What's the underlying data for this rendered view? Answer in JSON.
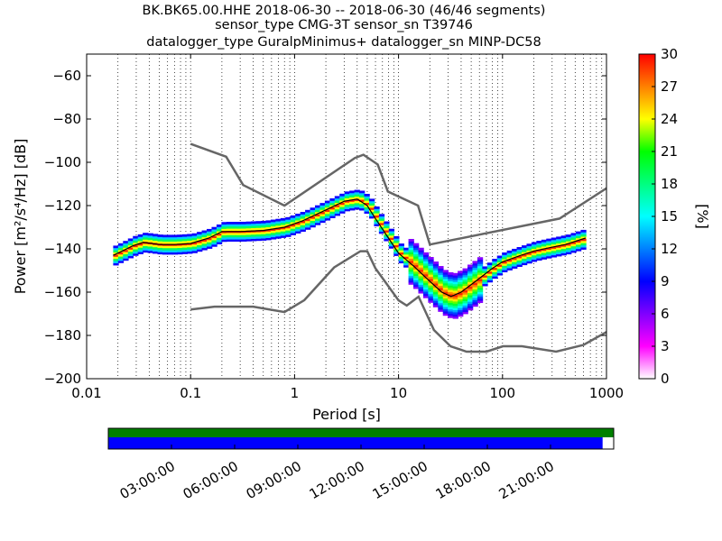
{
  "chart_data": {
    "type": "heatmap",
    "title_lines": [
      "BK.BK65.00.HHE   2018-06-30 -- 2018-06-30  (46/46 segments)",
      "sensor_type CMG-3T sensor_sn T39746",
      "datalogger_type GuralpMinimus+ datalogger_sn MINP-DC58"
    ],
    "xlabel": "Period [s]",
    "ylabel": "Power [m²/s⁴/Hz] [dB]",
    "x_scale": "log",
    "xlim": [
      0.01,
      1000
    ],
    "ylim": [
      -200,
      -50
    ],
    "x_tick_labels": [
      {
        "value": 0.01,
        "label": "0.01"
      },
      {
        "value": 0.1,
        "label": "0.1"
      },
      {
        "value": 1,
        "label": "1"
      },
      {
        "value": 10,
        "label": "10"
      },
      {
        "value": 100,
        "label": "100"
      },
      {
        "value": 1000,
        "label": "1000"
      }
    ],
    "y_tick_labels": [
      {
        "value": -60,
        "label": "−60"
      },
      {
        "value": -80,
        "label": "−80"
      },
      {
        "value": -100,
        "label": "−100"
      },
      {
        "value": -120,
        "label": "−120"
      },
      {
        "value": -140,
        "label": "−140"
      },
      {
        "value": -160,
        "label": "−160"
      },
      {
        "value": -180,
        "label": "−180"
      },
      {
        "value": -200,
        "label": "−200"
      }
    ],
    "grid": "dotted vertical",
    "colorbar": {
      "label": "[%]",
      "range": [
        0,
        30
      ],
      "ticks": [
        {
          "value": 0,
          "label": "0"
        },
        {
          "value": 3,
          "label": "3"
        },
        {
          "value": 6,
          "label": "6"
        },
        {
          "value": 9,
          "label": "9"
        },
        {
          "value": 12,
          "label": "12"
        },
        {
          "value": 15,
          "label": "15"
        },
        {
          "value": 18,
          "label": "18"
        },
        {
          "value": 21,
          "label": "21"
        },
        {
          "value": 24,
          "label": "24"
        },
        {
          "value": 27,
          "label": "27"
        },
        {
          "value": 30,
          "label": "30"
        }
      ],
      "colors": [
        "#ffffff",
        "#ff00ff",
        "#8000ff",
        "#0000ff",
        "#0080ff",
        "#00ffff",
        "#00ff80",
        "#00ff00",
        "#ffff00",
        "#ff8000",
        "#ff0000"
      ]
    },
    "noise_models": [
      {
        "name": "NHNM",
        "color": "#666666",
        "points": [
          [
            0.1,
            -91.5
          ],
          [
            0.22,
            -97.4
          ],
          [
            0.32,
            -110.5
          ],
          [
            0.8,
            -120
          ],
          [
            3.8,
            -98
          ],
          [
            4.6,
            -96.5
          ],
          [
            6.3,
            -101
          ],
          [
            7.9,
            -113.5
          ],
          [
            15.4,
            -120
          ],
          [
            20,
            -138
          ],
          [
            354,
            -126
          ],
          [
            1000,
            -112
          ]
        ]
      },
      {
        "name": "NLNM",
        "color": "#666666",
        "points": [
          [
            0.1,
            -168
          ],
          [
            0.17,
            -166.7
          ],
          [
            0.4,
            -166.7
          ],
          [
            0.8,
            -169.2
          ],
          [
            1.24,
            -163.7
          ],
          [
            2.4,
            -148.6
          ],
          [
            4.3,
            -141.1
          ],
          [
            5,
            -141.1
          ],
          [
            6,
            -149
          ],
          [
            10,
            -163.8
          ],
          [
            12,
            -166.2
          ],
          [
            15.6,
            -162.1
          ],
          [
            21.9,
            -177.5
          ],
          [
            31.6,
            -185
          ],
          [
            45,
            -187.5
          ],
          [
            70,
            -187.5
          ],
          [
            101,
            -185
          ],
          [
            154,
            -185
          ],
          [
            328,
            -187.5
          ],
          [
            600,
            -184.4
          ],
          [
            1000,
            -178.4
          ]
        ]
      }
    ],
    "mode_curve": {
      "color": "#000000",
      "points": [
        [
          0.018,
          -143
        ],
        [
          0.022,
          -141
        ],
        [
          0.028,
          -138.5
        ],
        [
          0.035,
          -137
        ],
        [
          0.05,
          -138
        ],
        [
          0.07,
          -138
        ],
        [
          0.1,
          -137.5
        ],
        [
          0.15,
          -135
        ],
        [
          0.2,
          -132
        ],
        [
          0.3,
          -132
        ],
        [
          0.5,
          -131.5
        ],
        [
          0.8,
          -130
        ],
        [
          1.2,
          -127
        ],
        [
          2,
          -122
        ],
        [
          3,
          -118
        ],
        [
          4,
          -117
        ],
        [
          5,
          -120
        ],
        [
          6,
          -126
        ],
        [
          8,
          -135
        ],
        [
          10,
          -142
        ],
        [
          14,
          -148
        ],
        [
          20,
          -155
        ],
        [
          26,
          -160
        ],
        [
          32,
          -162
        ],
        [
          40,
          -160
        ],
        [
          55,
          -155
        ],
        [
          80,
          -149
        ],
        [
          100,
          -146
        ],
        [
          150,
          -143
        ],
        [
          200,
          -141
        ],
        [
          280,
          -139.5
        ],
        [
          400,
          -138
        ],
        [
          630,
          -135
        ]
      ]
    },
    "psd_bands": [
      {
        "points": [
          [
            0.018,
            -143
          ],
          [
            0.022,
            -141
          ],
          [
            0.028,
            -138.5
          ],
          [
            0.035,
            -137
          ],
          [
            0.05,
            -138
          ],
          [
            0.07,
            -138
          ],
          [
            0.1,
            -137.5
          ],
          [
            0.15,
            -135
          ],
          [
            0.2,
            -132
          ],
          [
            0.3,
            -132
          ],
          [
            0.5,
            -131.5
          ],
          [
            0.8,
            -130
          ],
          [
            1.2,
            -127
          ],
          [
            2,
            -122
          ],
          [
            3,
            -118
          ],
          [
            4,
            -117
          ],
          [
            5,
            -120
          ],
          [
            6,
            -126
          ],
          [
            8,
            -135
          ],
          [
            10,
            -142
          ],
          [
            14,
            -148
          ],
          [
            20,
            -155
          ],
          [
            26,
            -160
          ],
          [
            32,
            -162
          ],
          [
            40,
            -160
          ],
          [
            55,
            -155
          ],
          [
            80,
            -149
          ],
          [
            100,
            -146
          ],
          [
            150,
            -143
          ],
          [
            200,
            -141
          ],
          [
            280,
            -139.5
          ],
          [
            400,
            -138
          ],
          [
            630,
            -135
          ]
        ]
      }
    ],
    "time_bar": {
      "coverage_colors": {
        "data": "#0000ff",
        "segments": "#008000"
      },
      "time_labels": [
        "03:00:00",
        "06:00:00",
        "09:00:00",
        "12:00:00",
        "15:00:00",
        "18:00:00",
        "21:00:00"
      ],
      "data_fraction": 0.978
    }
  }
}
